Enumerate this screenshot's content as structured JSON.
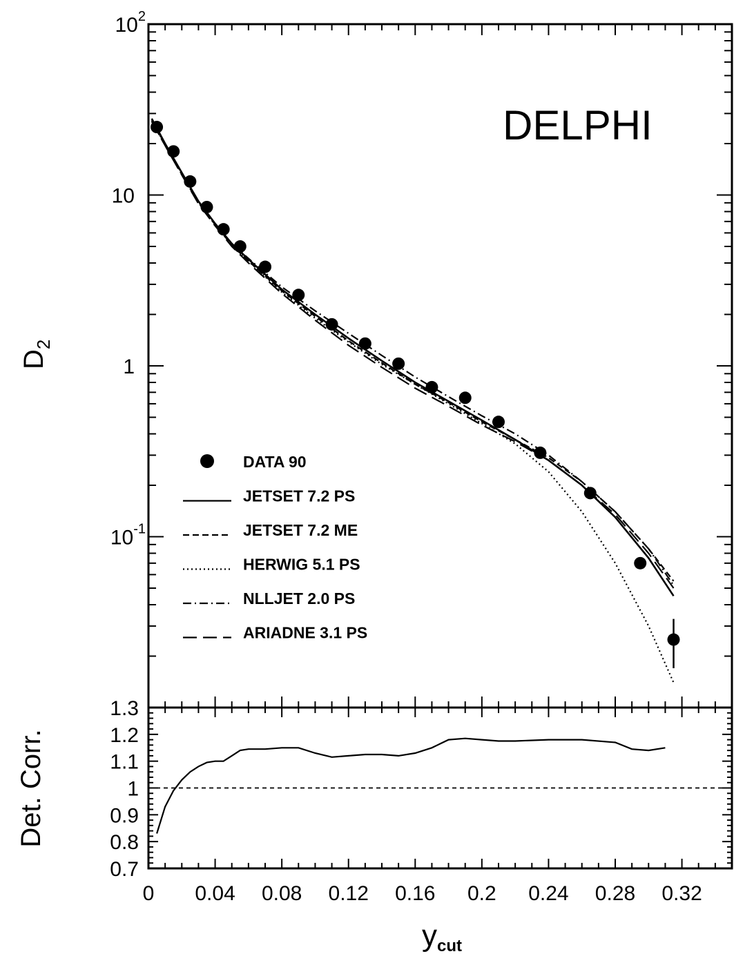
{
  "chart_data": [
    {
      "type": "scatter",
      "panel": "main",
      "annotation": "DELPHI",
      "ylabel_main": "D",
      "ylabel_sub": "2",
      "yscale": "log",
      "ylim": [
        0.01,
        100
      ],
      "xlim": [
        0,
        0.35
      ],
      "y_ticks": [
        {
          "value": 100,
          "base": "10",
          "exp": "2"
        },
        {
          "value": 10,
          "base": "10",
          "exp": ""
        },
        {
          "value": 1,
          "base": "1",
          "exp": ""
        },
        {
          "value": 0.1,
          "base": "10",
          "exp": "-1"
        }
      ],
      "series": [
        {
          "name": "DATA 90",
          "style": "points",
          "x": [
            0.005,
            0.015,
            0.025,
            0.035,
            0.045,
            0.055,
            0.07,
            0.09,
            0.11,
            0.13,
            0.15,
            0.17,
            0.19,
            0.21,
            0.235,
            0.265,
            0.295,
            0.315
          ],
          "y": [
            25,
            18,
            12,
            8.5,
            6.3,
            5.0,
            3.8,
            2.6,
            1.75,
            1.35,
            1.03,
            0.75,
            0.65,
            0.47,
            0.31,
            0.18,
            0.07,
            0.025
          ],
          "yerr": [
            0,
            0,
            0,
            0,
            0,
            0,
            0,
            0,
            0,
            0,
            0,
            0,
            0,
            0,
            0,
            0,
            0.005,
            0.008
          ]
        },
        {
          "name": "JETSET 7.2 PS",
          "style": "solid",
          "x": [
            0.002,
            0.01,
            0.02,
            0.03,
            0.04,
            0.05,
            0.06,
            0.08,
            0.1,
            0.12,
            0.14,
            0.16,
            0.18,
            0.2,
            0.22,
            0.24,
            0.26,
            0.28,
            0.3,
            0.315
          ],
          "y": [
            28,
            20,
            13.5,
            9.2,
            6.8,
            5.2,
            4.2,
            2.8,
            2.0,
            1.45,
            1.07,
            0.8,
            0.62,
            0.48,
            0.37,
            0.28,
            0.2,
            0.13,
            0.075,
            0.045
          ]
        },
        {
          "name": "JETSET 7.2 ME",
          "style": "short-dash",
          "x": [
            0.002,
            0.01,
            0.02,
            0.03,
            0.04,
            0.05,
            0.06,
            0.08,
            0.1,
            0.12,
            0.14,
            0.16,
            0.18,
            0.2,
            0.22,
            0.24,
            0.26,
            0.28,
            0.3,
            0.315
          ],
          "y": [
            27,
            19.5,
            13.2,
            9.0,
            6.7,
            5.1,
            4.1,
            2.75,
            1.95,
            1.4,
            1.04,
            0.78,
            0.61,
            0.47,
            0.37,
            0.29,
            0.21,
            0.14,
            0.085,
            0.055
          ]
        },
        {
          "name": "HERWIG 5.1 PS",
          "style": "dotted",
          "x": [
            0.002,
            0.01,
            0.02,
            0.03,
            0.04,
            0.05,
            0.06,
            0.08,
            0.1,
            0.12,
            0.14,
            0.16,
            0.18,
            0.2,
            0.22,
            0.24,
            0.26,
            0.28,
            0.3,
            0.315
          ],
          "y": [
            27,
            19.8,
            13.3,
            9.1,
            6.7,
            5.1,
            4.1,
            2.7,
            1.9,
            1.38,
            1.02,
            0.78,
            0.6,
            0.46,
            0.35,
            0.24,
            0.14,
            0.07,
            0.03,
            0.014
          ]
        },
        {
          "name": "NLLJET 2.0 PS",
          "style": "dash-dot",
          "x": [
            0.002,
            0.01,
            0.02,
            0.03,
            0.04,
            0.05,
            0.06,
            0.08,
            0.1,
            0.12,
            0.14,
            0.16,
            0.18,
            0.2,
            0.22,
            0.24,
            0.26,
            0.28,
            0.3,
            0.315
          ],
          "y": [
            27.5,
            19.8,
            13.4,
            9.2,
            6.8,
            5.2,
            4.25,
            2.9,
            2.1,
            1.55,
            1.15,
            0.86,
            0.66,
            0.51,
            0.4,
            0.3,
            0.21,
            0.14,
            0.085,
            0.052
          ]
        },
        {
          "name": "ARIADNE 3.1 PS",
          "style": "long-dash",
          "x": [
            0.002,
            0.01,
            0.02,
            0.03,
            0.04,
            0.05,
            0.06,
            0.08,
            0.1,
            0.12,
            0.14,
            0.16,
            0.18,
            0.2,
            0.22,
            0.24,
            0.26,
            0.28,
            0.3,
            0.315
          ],
          "y": [
            27,
            19.5,
            13.1,
            8.9,
            6.6,
            5.0,
            4.0,
            2.65,
            1.85,
            1.32,
            0.98,
            0.74,
            0.58,
            0.45,
            0.36,
            0.28,
            0.2,
            0.135,
            0.08,
            0.05
          ]
        }
      ]
    },
    {
      "type": "line",
      "panel": "ratio",
      "ylabel": "Det. Corr.",
      "xlabel_main": "y",
      "xlabel_sub": "cut",
      "xlim": [
        0,
        0.35
      ],
      "ylim": [
        0.7,
        1.3
      ],
      "x_ticks": [
        "0",
        "0.04",
        "0.08",
        "0.12",
        "0.16",
        "0.2",
        "0.24",
        "0.28",
        "0.32"
      ],
      "x_tick_values": [
        0,
        0.04,
        0.08,
        0.12,
        0.16,
        0.2,
        0.24,
        0.28,
        0.32
      ],
      "y_ticks": [
        "1.3",
        "1.2",
        "1.1",
        "1",
        "0.9",
        "0.8",
        "0.7"
      ],
      "y_tick_values": [
        1.3,
        1.2,
        1.1,
        1.0,
        0.9,
        0.8,
        0.7
      ],
      "reference_line": 1.0,
      "series": [
        {
          "style": "solid",
          "x": [
            0.005,
            0.01,
            0.015,
            0.02,
            0.025,
            0.03,
            0.035,
            0.04,
            0.045,
            0.05,
            0.055,
            0.06,
            0.07,
            0.08,
            0.09,
            0.1,
            0.11,
            0.12,
            0.13,
            0.14,
            0.15,
            0.16,
            0.17,
            0.18,
            0.19,
            0.2,
            0.21,
            0.22,
            0.24,
            0.26,
            0.28,
            0.29,
            0.3,
            0.31
          ],
          "y": [
            0.83,
            0.93,
            0.99,
            1.03,
            1.06,
            1.08,
            1.095,
            1.1,
            1.1,
            1.12,
            1.14,
            1.145,
            1.145,
            1.15,
            1.15,
            1.13,
            1.115,
            1.12,
            1.125,
            1.125,
            1.12,
            1.13,
            1.15,
            1.18,
            1.185,
            1.18,
            1.175,
            1.175,
            1.18,
            1.18,
            1.17,
            1.145,
            1.14,
            1.15
          ]
        }
      ]
    }
  ]
}
